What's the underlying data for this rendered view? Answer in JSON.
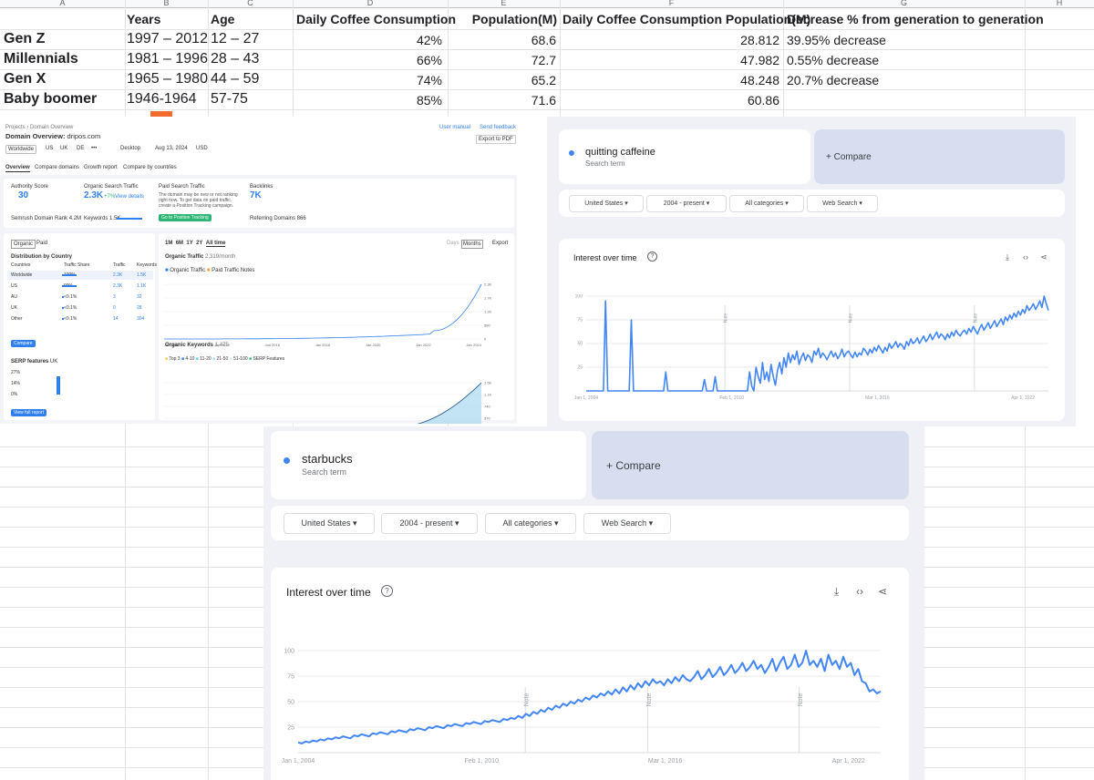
{
  "sheet": {
    "col_letters": [
      "A",
      "B",
      "C",
      "D",
      "E",
      "F",
      "G",
      "H"
    ],
    "headers": [
      "Years",
      "Age",
      "Daily Coffee Consumption",
      "Population(M)",
      "Daily Coffee Consumption Population(M)",
      "Decrease % from generation to generation"
    ],
    "rows": [
      {
        "gen": "Gen Z",
        "years": "1997 – 2012",
        "age": "12 – 27",
        "consumption": "42%",
        "population": "68.6",
        "consumption_pop": "28.812",
        "decrease": "39.95% decrease"
      },
      {
        "gen": "Millennials",
        "years": "1981 – 1996",
        "age": "28 – 43",
        "consumption": "66%",
        "population": "72.7",
        "consumption_pop": "47.982",
        "decrease": "0.55% decrease"
      },
      {
        "gen": "Gen X",
        "years": "1965 – 1980",
        "age": "44 – 59",
        "consumption": "74%",
        "population": "65.2",
        "consumption_pop": "48.248",
        "decrease": "20.7% decrease"
      },
      {
        "gen": "Baby boomer",
        "years": "1946-1964",
        "age": "57-75",
        "consumption": "85%",
        "population": "71.6",
        "consumption_pop": "60.86",
        "decrease": ""
      }
    ]
  },
  "semrush": {
    "breadcrumb": [
      "Projects",
      "Domain Overview"
    ],
    "title_prefix": "Domain Overview:",
    "domain": "dripos.com",
    "user_manual": "User manual",
    "send_feedback": "Send feedback",
    "export_pdf": "Export to PDF",
    "filters": [
      "Worldwide",
      "US",
      "UK",
      "DE",
      "•••",
      "Desktop",
      "Aug 13, 2024",
      "USD"
    ],
    "tabs": [
      "Overview",
      "Compare domains",
      "Growth report",
      "Compare by countries"
    ],
    "authority_label": "Authority Score",
    "authority_value": "30",
    "semrush_rank": "Semrush Domain Rank 4.2M",
    "organic_label": "Organic Search Traffic",
    "organic_value": "2.3K",
    "organic_change": "+7%",
    "view_details": "View details",
    "keywords_line": "Keywords 1.5K",
    "paid_label": "Paid Search Traffic",
    "paid_note": [
      "The domain may be new or not ranking",
      "right now. To get data on paid traffic,",
      "create a Position Tracking campaign."
    ],
    "go_tracking": "Go to Position Tracking",
    "backlinks_label": "Backlinks",
    "backlinks_value": "7K",
    "ref_domains": "Referring Domains 866",
    "org_paid_tabs": [
      "Organic",
      "Paid"
    ],
    "dist_title": "Distribution by Country",
    "dist_headers": [
      "Countries",
      "Traffic Share",
      "Traffic",
      "Keywords"
    ],
    "dist_rows": [
      [
        "Worldwide",
        "100%",
        "2.3K",
        "1.5K"
      ],
      [
        "US",
        "99%",
        "2.3K",
        "1.1K"
      ],
      [
        "AU",
        "<0.1%",
        "3",
        "32"
      ],
      [
        "UK",
        "<0.1%",
        "0",
        "28"
      ],
      [
        "Other",
        "<0.1%",
        "14",
        "304"
      ]
    ],
    "compare_btn": "Compare",
    "serp_title": "SERP features",
    "serp_country": "UK",
    "serp_axis": [
      "27%",
      "14%",
      "0%"
    ],
    "view_full": "View full report",
    "ranges": [
      "1M",
      "6M",
      "1Y",
      "2Y",
      "All time"
    ],
    "days": "Days",
    "months": "Months",
    "export": "Export",
    "organic_traffic_title": "Organic Traffic",
    "organic_traffic_value": "2,319/month",
    "legend1": [
      "Organic Traffic",
      "Paid Traffic",
      "Notes"
    ],
    "traffic_y": [
      "2.3K",
      "1.7K",
      "1.2K",
      "580",
      "0"
    ],
    "years_axis": [
      "Jan 2012",
      "Jan 2014",
      "Jan 2016",
      "Jan 2018",
      "Jan 2020",
      "Jan 2022",
      "Jan 2024"
    ],
    "organic_kw_title": "Organic Keywords",
    "organic_kw_value": "1,475",
    "legend2": [
      "Top 3",
      "4-10",
      "11-20",
      "21-50",
      "51-100",
      "SERP Features"
    ],
    "kw_y": [
      "1.5K",
      "1.1K",
      "740",
      "370",
      "0"
    ]
  },
  "trends1": {
    "term": "quitting caffeine",
    "term_sub": "Search term",
    "compare": "+ Compare",
    "filters": [
      "United States",
      "2004 - present",
      "All categories",
      "Web Search"
    ],
    "chart_title": "Interest over time",
    "help": "?",
    "y_ticks": [
      "100",
      "75",
      "50",
      "25"
    ],
    "x_labels": [
      "Jan 1, 2004",
      "Feb 1, 2010",
      "Mar 1, 2016",
      "Apr 1, 2022"
    ],
    "note": "Note"
  },
  "trends2": {
    "term": "starbucks",
    "term_sub": "Search term",
    "compare": "+ Compare",
    "filters": [
      "United States",
      "2004 - present",
      "All categories",
      "Web Search"
    ],
    "chart_title": "Interest over time",
    "help": "?",
    "y_ticks": [
      "100",
      "75",
      "50",
      "25"
    ],
    "x_labels": [
      "Jan 1, 2004",
      "Feb 1, 2010",
      "Mar 1, 2016",
      "Apr 1, 2022"
    ],
    "note": "Note"
  },
  "chart_data": [
    {
      "type": "line",
      "title": "Interest over time",
      "series": [
        {
          "values": [
            0,
            0,
            0,
            0,
            0,
            0,
            0,
            0,
            0,
            95,
            0,
            0,
            0,
            0,
            0,
            0,
            0,
            0,
            0,
            0,
            0,
            75,
            0,
            0,
            0,
            0,
            0,
            0,
            0,
            0,
            0,
            0,
            0,
            0,
            0,
            0,
            0,
            20,
            0,
            0,
            0,
            0,
            0,
            0,
            0,
            0,
            0,
            0,
            0,
            0,
            0,
            0,
            0,
            0,
            0,
            12,
            0,
            0,
            0,
            0,
            15,
            0,
            0,
            0,
            0,
            0,
            0,
            0,
            0,
            0,
            0,
            0,
            0,
            0,
            0,
            0,
            20,
            5,
            0,
            25,
            15,
            8,
            30,
            12,
            20,
            10,
            28,
            15,
            6,
            22,
            30,
            18,
            35,
            25,
            40,
            30,
            38,
            33,
            42,
            28,
            35,
            40,
            32,
            38,
            36,
            30,
            42,
            38,
            45,
            35,
            40,
            37,
            33,
            38,
            42,
            36,
            40,
            34,
            38,
            44,
            36,
            40,
            42,
            38,
            35,
            41,
            36,
            40,
            38,
            45,
            42,
            38,
            44,
            40,
            46,
            42,
            48,
            44,
            40,
            46,
            42,
            50,
            45,
            48,
            52,
            46,
            50,
            48,
            44,
            52,
            48,
            55,
            50,
            52,
            56,
            50,
            54,
            58,
            52,
            55,
            60,
            54,
            58,
            62,
            56,
            60,
            58,
            54,
            60,
            56,
            62,
            58,
            64,
            60,
            58,
            62,
            64,
            60,
            66,
            62,
            68,
            64,
            60,
            66,
            70,
            64,
            68,
            72,
            66,
            70,
            74,
            68,
            72,
            76,
            70,
            78,
            74,
            80,
            76,
            82,
            78,
            84,
            80,
            86,
            82,
            90,
            85,
            88,
            92,
            86,
            90,
            95,
            88,
            100,
            92,
            85
          ]
        }
      ],
      "ylim": [
        0,
        100
      ],
      "x_range": [
        "Jan 1, 2004",
        "present"
      ]
    },
    {
      "type": "line",
      "title": "Interest over time",
      "series": [
        {
          "values": [
            10,
            9,
            11,
            10,
            12,
            11,
            13,
            12,
            14,
            13,
            15,
            14,
            16,
            15,
            14,
            17,
            16,
            18,
            17,
            16,
            19,
            18,
            20,
            19,
            18,
            21,
            20,
            22,
            21,
            20,
            23,
            22,
            24,
            23,
            22,
            25,
            24,
            26,
            25,
            24,
            27,
            26,
            28,
            27,
            26,
            29,
            28,
            30,
            29,
            28,
            31,
            30,
            32,
            31,
            30,
            33,
            32,
            34,
            33,
            36,
            34,
            38,
            36,
            40,
            38,
            42,
            40,
            44,
            42,
            46,
            44,
            48,
            46,
            50,
            48,
            52,
            50,
            54,
            52,
            56,
            54,
            58,
            56,
            60,
            57,
            62,
            58,
            64,
            60,
            66,
            62,
            68,
            64,
            70,
            66,
            72,
            68,
            70,
            66,
            72,
            68,
            74,
            70,
            76,
            72,
            70,
            74,
            80,
            72,
            76,
            82,
            74,
            78,
            84,
            76,
            80,
            86,
            78,
            82,
            88,
            80,
            84,
            90,
            82,
            86,
            78,
            84,
            92,
            80,
            88,
            94,
            82,
            86,
            96,
            84,
            88,
            100,
            86,
            90,
            84,
            92,
            80,
            96,
            86,
            90,
            82,
            94,
            84,
            88,
            76,
            82,
            70,
            68,
            60,
            62,
            58,
            60
          ]
        }
      ],
      "ylim": [
        0,
        100
      ],
      "x_range": [
        "Jan 1, 2004",
        "present"
      ]
    }
  ]
}
